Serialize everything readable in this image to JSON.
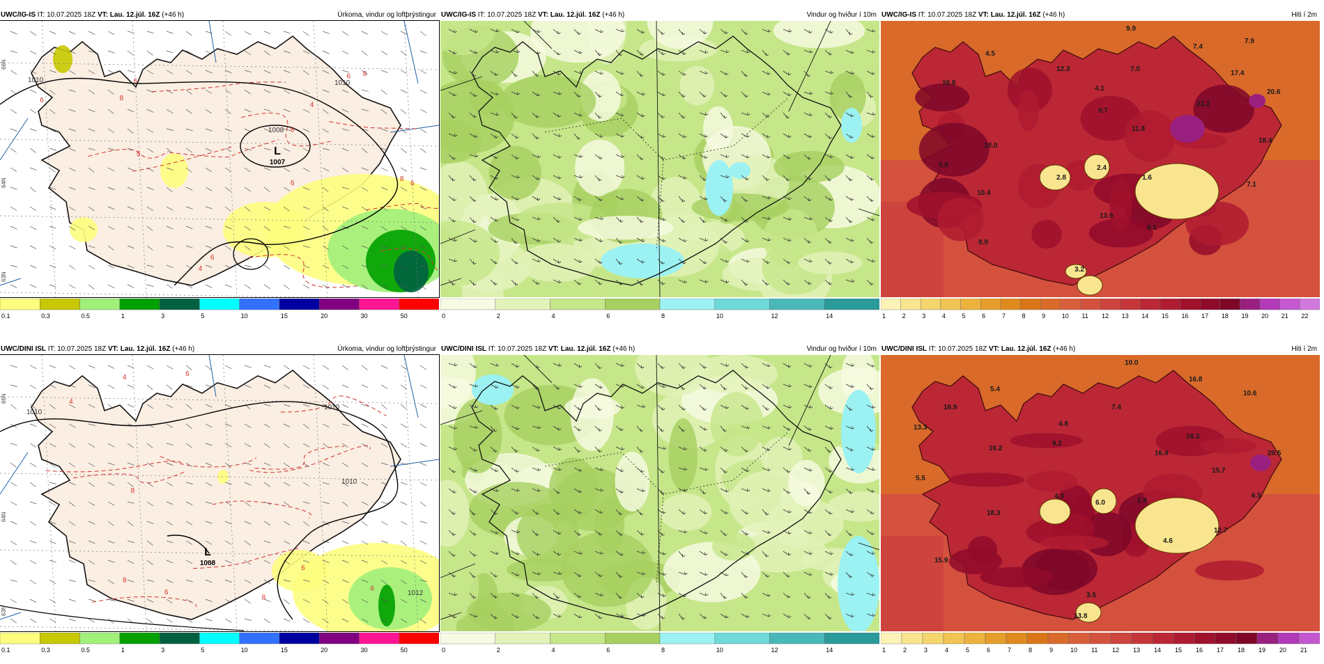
{
  "run": {
    "init_text": "IT: 10.07.2025 18Z",
    "valid_text": "VT: Lau. 12.júl. 16Z",
    "lead_text": "(+46 h)"
  },
  "titles": {
    "precip": "Úrkoma, vindur og loftþrýstingur",
    "wind": "Vindur og hviður í 10m",
    "temp": "Hiti í 2m"
  },
  "models": {
    "top": "UWC/IG-IS",
    "bottom": "UWC/DINI ISL"
  },
  "colors": {
    "land": "#fbeee2",
    "sea_bg": "#ffffff",
    "coast": "#111111",
    "isobar": "#000000",
    "isotherm_dashed": "#d0322e",
    "grid_line": "#1f5fa8"
  },
  "scales": {
    "precip": {
      "labels": [
        "0.1",
        "0.3",
        "0.5",
        "1",
        "3",
        "5",
        "10",
        "15",
        "20",
        "30",
        "50"
      ],
      "colors": [
        "#fdfd7e",
        "#c8c800",
        "#a0f07a",
        "#00a000",
        "#006040",
        "#00ffff",
        "#3270ff",
        "#0000a0",
        "#800080",
        "#ff1493",
        "#ff0000"
      ]
    },
    "wind": {
      "labels": [
        "0",
        "2",
        "4",
        "6",
        "8",
        "10",
        "12",
        "14"
      ],
      "colors": [
        "#f7fbe4",
        "#e2f2b9",
        "#c6e68a",
        "#a6d060",
        "#9cf2f2",
        "#6fd8d8",
        "#4ab8b8",
        "#2a9a9a"
      ]
    },
    "temp_top": {
      "labels": [
        "1",
        "2",
        "3",
        "4",
        "5",
        "6",
        "7",
        "8",
        "9",
        "10",
        "11",
        "12",
        "13",
        "14",
        "15",
        "16",
        "17",
        "18",
        "19",
        "20",
        "21",
        "22"
      ],
      "colors": [
        "#fdf3b6",
        "#f9e58f",
        "#f5d56e",
        "#f1c453",
        "#ebb23d",
        "#e59e2b",
        "#df8a1f",
        "#d97718",
        "#d96a2a",
        "#d95f3c",
        "#d4513e",
        "#cd433d",
        "#c5353a",
        "#bb2735",
        "#af1b30",
        "#a0112c",
        "#900b2a",
        "#7e0728",
        "#9a2080",
        "#b23ab8",
        "#c458d0",
        "#d078dc"
      ]
    },
    "temp_bottom": {
      "labels": [
        "1",
        "2",
        "3",
        "4",
        "5",
        "6",
        "7",
        "8",
        "9",
        "10",
        "11",
        "12",
        "13",
        "14",
        "15",
        "16",
        "17",
        "18",
        "19",
        "20",
        "21"
      ],
      "colors": [
        "#fdf3b6",
        "#f9e58f",
        "#f5d56e",
        "#f1c453",
        "#ebb23d",
        "#e59e2b",
        "#df8a1f",
        "#d97718",
        "#d96a2a",
        "#d95f3c",
        "#d4513e",
        "#cd433d",
        "#c5353a",
        "#bb2735",
        "#af1b30",
        "#a0112c",
        "#900b2a",
        "#7e0728",
        "#9a2080",
        "#b23ab8",
        "#c458d0"
      ]
    }
  },
  "pressure": {
    "top": {
      "low_center": "1007",
      "isobars": [
        "1010",
        "1010",
        "1008"
      ]
    },
    "bottom": {
      "low_center": "1008",
      "isobars": [
        "1010",
        "1010",
        "1010",
        "1012"
      ]
    }
  },
  "precip_marks": {
    "top": [
      "6",
      "8",
      "8",
      "6",
      "6",
      "4",
      "6",
      "5",
      "8",
      "6",
      "8",
      "6",
      "4"
    ],
    "bottom": [
      "6",
      "8",
      "8",
      "6",
      "4",
      "4",
      "8",
      "6",
      "6"
    ]
  },
  "lat_labels": [
    "66N",
    "64N",
    "63N"
  ],
  "temps": {
    "top": [
      "9.9",
      "7.4",
      "7.9",
      "4.5",
      "12.3",
      "7.0",
      "17.4",
      "16.8",
      "4.1",
      "21.2",
      "20.6",
      "9.7",
      "11.8",
      "18.0",
      "18.4",
      "5.8",
      "2.8",
      "2.4",
      "1.6",
      "7.1",
      "10.4",
      "13.9",
      "6.1",
      "8.9",
      "3.2"
    ],
    "bottom": [
      "10.0",
      "5.4",
      "16.8",
      "10.6",
      "16.9",
      "7.4",
      "4.8",
      "13.3",
      "9.2",
      "18.3",
      "20.5",
      "16.2",
      "16.4",
      "15.7",
      "5.5",
      "4.3",
      "6.0",
      "1.9",
      "6.5",
      "18.3",
      "12.7",
      "4.6",
      "15.9",
      "3.5",
      "13.8"
    ]
  }
}
